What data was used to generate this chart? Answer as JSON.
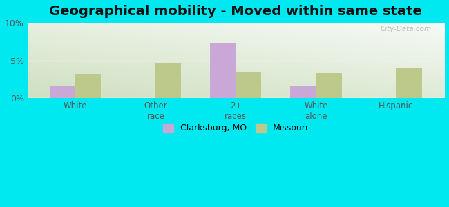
{
  "title": "Geographical mobility - Moved within same state",
  "categories": [
    "White",
    "Other\nrace",
    "2+\nraces",
    "White\nalone",
    "Hispanic"
  ],
  "clarksburg_values": [
    1.7,
    0.0,
    7.3,
    1.6,
    0.0
  ],
  "missouri_values": [
    3.2,
    4.6,
    3.5,
    3.3,
    4.0
  ],
  "clarksburg_color": "#c9a8d8",
  "missouri_color": "#bdc98a",
  "background_outer": "#00e8f0",
  "ylim": [
    0,
    10
  ],
  "yticks": [
    0,
    5,
    10
  ],
  "ytick_labels": [
    "0%",
    "5%",
    "10%"
  ],
  "bar_width": 0.32,
  "legend_labels": [
    "Clarksburg, MO",
    "Missouri"
  ],
  "title_fontsize": 14,
  "watermark": "City-Data.com",
  "grad_bottom_left": "#cfe0c0",
  "grad_top_right": "#f5faf5"
}
